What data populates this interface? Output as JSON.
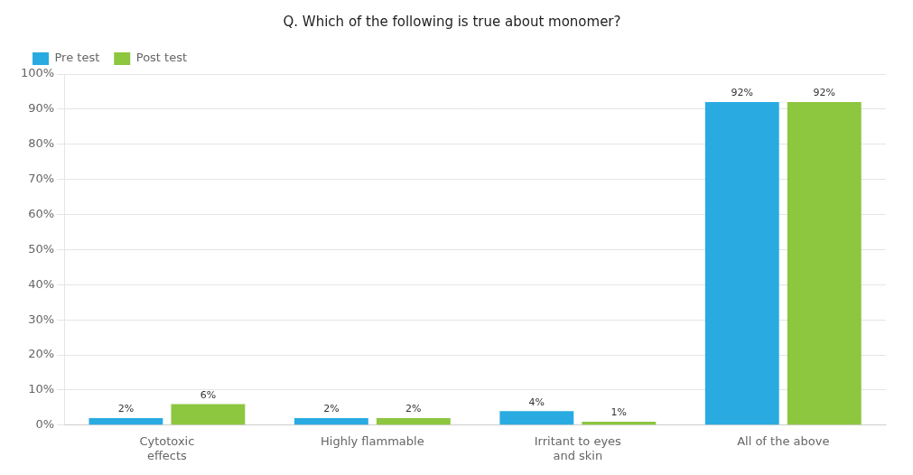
{
  "chart_data": {
    "type": "bar",
    "title": "Q. Which of the following is true about monomer?",
    "categories": [
      "Cytotoxic\neffects",
      "Highly flammable",
      "Irritant to eyes\nand skin",
      "All of the above"
    ],
    "series": [
      {
        "name": "Pre test",
        "color": "#29ABE2",
        "values": [
          2,
          2,
          4,
          92
        ],
        "value_labels": [
          "2%",
          "2%",
          "4%",
          "92%"
        ]
      },
      {
        "name": "Post test",
        "color": "#8DC63F",
        "values": [
          6,
          2,
          1,
          92
        ],
        "value_labels": [
          "6%",
          "2%",
          "1%",
          "92%"
        ]
      }
    ],
    "ylim": [
      0,
      100
    ],
    "yticks": [
      {
        "value": 0,
        "label": "0%"
      },
      {
        "value": 10,
        "label": "10%"
      },
      {
        "value": 20,
        "label": "20%"
      },
      {
        "value": 30,
        "label": "30%"
      },
      {
        "value": 40,
        "label": "40%"
      },
      {
        "value": 50,
        "label": "50%"
      },
      {
        "value": 60,
        "label": "60%"
      },
      {
        "value": 70,
        "label": "70%"
      },
      {
        "value": 80,
        "label": "80%"
      },
      {
        "value": 90,
        "label": "90%"
      },
      {
        "value": 100,
        "label": "100%"
      }
    ],
    "grid": true,
    "legend": "upper left",
    "data_labels": true
  }
}
